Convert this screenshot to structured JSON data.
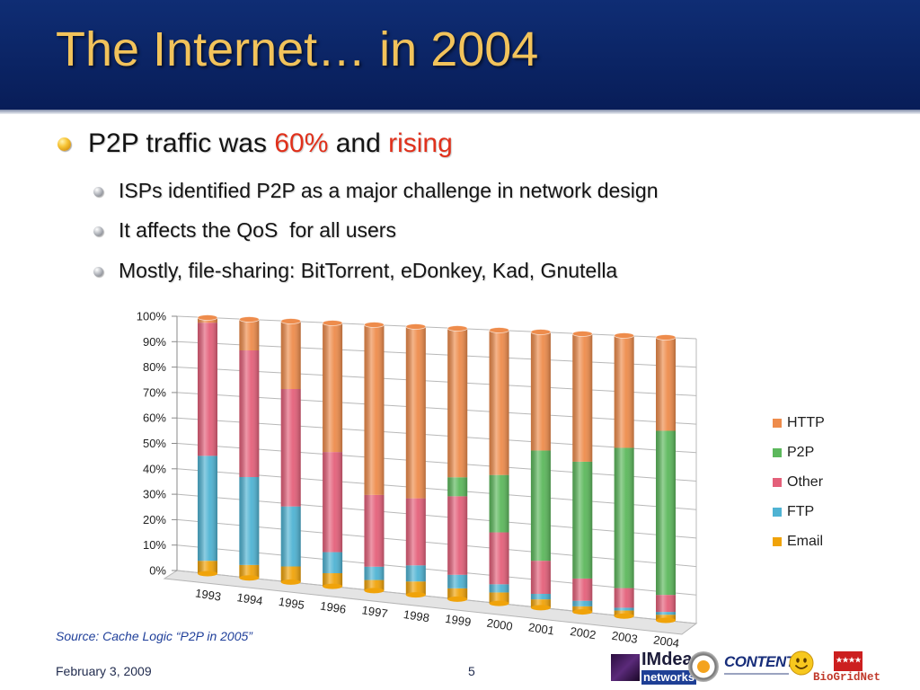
{
  "slide": {
    "title": "The Internet… in 2004",
    "bullet1": {
      "pre": "P2P traffic was ",
      "highlight1": "60%",
      "mid": " and ",
      "highlight2": "rising"
    },
    "subbullets": [
      "ISPs identified P2P as a major challenge in network design",
      "It affects the QoS  for all users",
      "Mostly, file-sharing: BitTorrent, eDonkey, Kad, Gnutella"
    ],
    "source": "Source: Cache Logic “P2P in 2005”",
    "date": "February 3, 2009",
    "page_number": "5",
    "logos": {
      "imdea_top": "IMdea",
      "imdea_bottom": "networks",
      "content": "CONTENT",
      "biogrid": "BioGridNet"
    }
  },
  "colors": {
    "header_bg": "#081d58",
    "title": "#f2c35b",
    "highlight": "#e0311c",
    "source_text": "#1f3f9a"
  },
  "chart_data": {
    "type": "bar",
    "stacked": "percent",
    "title": "",
    "xlabel": "",
    "ylabel": "",
    "categories": [
      "1993",
      "1994",
      "1995",
      "1996",
      "1997",
      "1998",
      "1999",
      "2000",
      "2001",
      "2002",
      "2003",
      "2004"
    ],
    "series": [
      {
        "name": "Email",
        "color": "#f0a30a",
        "values": [
          5,
          5,
          6,
          5,
          4,
          5,
          4,
          4,
          3,
          2,
          2,
          2
        ]
      },
      {
        "name": "FTP",
        "color": "#4fb3d3",
        "values": [
          41,
          34,
          23,
          8,
          5,
          6,
          5,
          3,
          2,
          2,
          1,
          1
        ]
      },
      {
        "name": "Other",
        "color": "#e4607a",
        "values": [
          52,
          49,
          45,
          38,
          27,
          25,
          29,
          19,
          12,
          8,
          7,
          6
        ]
      },
      {
        "name": "P2P",
        "color": "#5cb85c",
        "values": [
          0,
          0,
          0,
          0,
          0,
          0,
          7,
          21,
          40,
          42,
          50,
          58
        ]
      },
      {
        "name": "HTTP",
        "color": "#ee8c4c",
        "values": [
          2,
          12,
          26,
          49,
          64,
          64,
          55,
          53,
          43,
          46,
          40,
          33
        ]
      }
    ],
    "ylim": [
      0,
      100
    ],
    "yticks": [
      "0%",
      "10%",
      "20%",
      "30%",
      "40%",
      "50%",
      "60%",
      "70%",
      "80%",
      "90%",
      "100%"
    ],
    "grid": true,
    "legend": {
      "position": "right",
      "entries": [
        "HTTP",
        "P2P",
        "Other",
        "FTP",
        "Email"
      ]
    }
  }
}
